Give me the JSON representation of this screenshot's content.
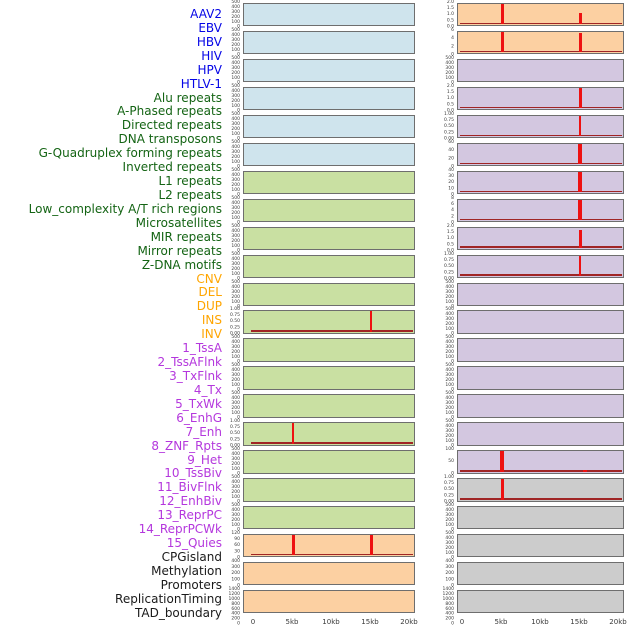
{
  "colors": {
    "signal": "#ee1111",
    "baseline": "#a02525",
    "panel_border": "#6e6e6e",
    "tick_text": "#3a3a3a",
    "groups": {
      "virus": {
        "bg": "#cfe4ed",
        "label": "#0505e6"
      },
      "repeat": {
        "bg": "#c9e0a2",
        "label": "#146414"
      },
      "sv": {
        "bg": "#fcd0a2",
        "label": "#ffa500"
      },
      "chromatin": {
        "bg": "#d3c7e0",
        "label": "#b437dd"
      },
      "other": {
        "bg": "#1a1a1a",
        "label": "#1a1a1a"
      }
    },
    "group_bgs": {
      "virus": "#cfe4ed",
      "repeat": "#c9e0a2",
      "sv": "#fcd0a2",
      "chromatin": "#d3c7e0",
      "other": "#cccccc"
    }
  },
  "chart_data": {
    "type": "line",
    "title": "",
    "layout": "small multiples, 22 rows x 2 columns, column-major order; one profile per genomic feature",
    "x": {
      "label": "",
      "ticks": [
        "0",
        "5kb",
        "10kb",
        "15kb",
        "20kb"
      ],
      "range_kb": [
        0,
        20
      ]
    },
    "note": "signal is flat near 0 with sharp peaks at 5kb and/or 15kb in some panels; spike h is fraction of panel y-range",
    "panels": [
      {
        "name": "AAV2",
        "group": "virus",
        "yticks": [
          "500",
          "400",
          "300",
          "200",
          "100",
          "0"
        ],
        "spikes": []
      },
      {
        "name": "EBV",
        "group": "virus",
        "yticks": [
          "500",
          "400",
          "300",
          "200",
          "100",
          "0"
        ],
        "spikes": []
      },
      {
        "name": "HBV",
        "group": "virus",
        "yticks": [
          "500",
          "400",
          "300",
          "200",
          "100",
          "0"
        ],
        "spikes": []
      },
      {
        "name": "HIV",
        "group": "virus",
        "yticks": [
          "500",
          "400",
          "300",
          "200",
          "100",
          "0"
        ],
        "spikes": []
      },
      {
        "name": "HPV",
        "group": "virus",
        "yticks": [
          "500",
          "400",
          "300",
          "200",
          "100",
          "0"
        ],
        "spikes": []
      },
      {
        "name": "HTLV-1",
        "group": "virus",
        "yticks": [
          "500",
          "400",
          "300",
          "200",
          "100",
          "0"
        ],
        "spikes": []
      },
      {
        "name": "Alu repeats",
        "group": "repeat",
        "yticks": [
          "500",
          "400",
          "300",
          "200",
          "100",
          "0"
        ],
        "spikes": []
      },
      {
        "name": "A-Phased repeats",
        "group": "repeat",
        "yticks": [
          "500",
          "400",
          "300",
          "200",
          "100",
          "0"
        ],
        "spikes": []
      },
      {
        "name": "Directed repeats",
        "group": "repeat",
        "yticks": [
          "500",
          "400",
          "300",
          "200",
          "100",
          "0"
        ],
        "spikes": []
      },
      {
        "name": "DNA transposons",
        "group": "repeat",
        "yticks": [
          "500",
          "400",
          "300",
          "200",
          "100",
          "0"
        ],
        "spikes": []
      },
      {
        "name": "G-Quadruplex forming repeats",
        "group": "repeat",
        "yticks": [
          "500",
          "400",
          "300",
          "200",
          "100",
          "0"
        ],
        "spikes": []
      },
      {
        "name": "Inverted repeats",
        "group": "repeat",
        "yticks": [
          "1.00",
          "0.75",
          "0.50",
          "0.25",
          "0.00"
        ],
        "spikes": [
          {
            "kb": 15,
            "h": 1.0,
            "w": 2
          }
        ]
      },
      {
        "name": "L1 repeats",
        "group": "repeat",
        "yticks": [
          "500",
          "400",
          "300",
          "200",
          "100",
          "0"
        ],
        "spikes": []
      },
      {
        "name": "L2 repeats",
        "group": "repeat",
        "yticks": [
          "500",
          "400",
          "300",
          "200",
          "100",
          "0"
        ],
        "spikes": []
      },
      {
        "name": "Low_complexity A/T rich regions",
        "group": "repeat",
        "yticks": [
          "500",
          "400",
          "300",
          "200",
          "100",
          "0"
        ],
        "spikes": []
      },
      {
        "name": "Microsatellites",
        "group": "repeat",
        "yticks": [
          "1.00",
          "0.75",
          "0.50",
          "0.25",
          "0.00"
        ],
        "spikes": [
          {
            "kb": 5,
            "h": 1.0,
            "w": 2
          }
        ]
      },
      {
        "name": "MIR repeats",
        "group": "repeat",
        "yticks": [
          "500",
          "400",
          "300",
          "200",
          "100",
          "0"
        ],
        "spikes": []
      },
      {
        "name": "Mirror repeats",
        "group": "repeat",
        "yticks": [
          "500",
          "400",
          "300",
          "200",
          "100",
          "0"
        ],
        "spikes": []
      },
      {
        "name": "Z-DNA motifs",
        "group": "repeat",
        "yticks": [
          "500",
          "400",
          "300",
          "200",
          "100",
          "0"
        ],
        "spikes": []
      },
      {
        "name": "CNV",
        "group": "sv",
        "yticks": [
          "120",
          "90",
          "60",
          "30",
          "0"
        ],
        "spikes": [
          {
            "kb": 5,
            "h": 1.0,
            "w": 3
          },
          {
            "kb": 15,
            "h": 1.0,
            "w": 3
          }
        ]
      },
      {
        "name": "DEL",
        "group": "sv",
        "yticks": [
          "400",
          "300",
          "200",
          "100",
          "0"
        ],
        "spikes": []
      },
      {
        "name": "DUP",
        "group": "sv",
        "yticks": [
          "1400",
          "1200",
          "1000",
          "800",
          "600",
          "400",
          "200",
          "0"
        ],
        "spikes": []
      },
      {
        "name": "INS",
        "group": "sv",
        "yticks": [
          "2.0",
          "1.5",
          "1.0",
          "0.5",
          "0.0"
        ],
        "spikes": [
          {
            "kb": 5,
            "h": 1.0,
            "w": 3
          },
          {
            "kb": 15,
            "h": 0.58,
            "w": 3
          }
        ]
      },
      {
        "name": "INV",
        "group": "sv",
        "yticks": [
          "6",
          "4",
          "2",
          "0"
        ],
        "spikes": [
          {
            "kb": 5,
            "h": 1.0,
            "w": 3
          },
          {
            "kb": 15,
            "h": 0.97,
            "w": 3
          }
        ]
      },
      {
        "name": "1_TssA",
        "group": "chromatin",
        "yticks": [
          "500",
          "400",
          "300",
          "200",
          "100",
          "0"
        ],
        "spikes": []
      },
      {
        "name": "2_TssAFlnk",
        "group": "chromatin",
        "yticks": [
          "2.0",
          "1.5",
          "1.0",
          "0.5",
          "0.0"
        ],
        "spikes": [
          {
            "kb": 15,
            "h": 1.0,
            "w": 3
          }
        ]
      },
      {
        "name": "3_TxFlnk",
        "group": "chromatin",
        "yticks": [
          "1.00",
          "0.75",
          "0.50",
          "0.25",
          "0.00"
        ],
        "spikes": [
          {
            "kb": 15,
            "h": 1.0,
            "w": 2
          }
        ]
      },
      {
        "name": "4_Tx",
        "group": "chromatin",
        "yticks": [
          "60",
          "40",
          "20",
          "0"
        ],
        "spikes": [
          {
            "kb": 15,
            "h": 1.0,
            "w": 4
          }
        ]
      },
      {
        "name": "5_TxWk",
        "group": "chromatin",
        "yticks": [
          "40",
          "30",
          "20",
          "10",
          "0"
        ],
        "spikes": [
          {
            "kb": 15,
            "h": 1.0,
            "w": 4
          }
        ]
      },
      {
        "name": "6_EnhG",
        "group": "chromatin",
        "yticks": [
          "8",
          "6",
          "4",
          "2",
          "0"
        ],
        "spikes": [
          {
            "kb": 15,
            "h": 1.0,
            "w": 4
          }
        ]
      },
      {
        "name": "7_Enh",
        "group": "chromatin",
        "yticks": [
          "2.0",
          "1.5",
          "1.0",
          "0.5",
          "0.0"
        ],
        "spikes": [
          {
            "kb": 15,
            "h": 0.88,
            "w": 3
          }
        ]
      },
      {
        "name": "8_ZNF_Rpts",
        "group": "chromatin",
        "yticks": [
          "1.00",
          "0.75",
          "0.50",
          "0.25",
          "0.00"
        ],
        "spikes": [
          {
            "kb": 15,
            "h": 1.0,
            "w": 2
          }
        ]
      },
      {
        "name": "9_Het",
        "group": "chromatin",
        "yticks": [
          "500",
          "400",
          "300",
          "200",
          "100",
          "0"
        ],
        "spikes": []
      },
      {
        "name": "10_TssBiv",
        "group": "chromatin",
        "yticks": [
          "500",
          "400",
          "300",
          "200",
          "100",
          "0"
        ],
        "spikes": []
      },
      {
        "name": "11_BivFlnk",
        "group": "chromatin",
        "yticks": [
          "500",
          "400",
          "300",
          "200",
          "100",
          "0"
        ],
        "spikes": []
      },
      {
        "name": "12_EnhBiv",
        "group": "chromatin",
        "yticks": [
          "500",
          "400",
          "300",
          "200",
          "100",
          "0"
        ],
        "spikes": []
      },
      {
        "name": "13_ReprPC",
        "group": "chromatin",
        "yticks": [
          "500",
          "400",
          "300",
          "200",
          "100",
          "0"
        ],
        "spikes": []
      },
      {
        "name": "14_ReprPCWk",
        "group": "chromatin",
        "yticks": [
          "500",
          "400",
          "300",
          "200",
          "100",
          "0"
        ],
        "spikes": []
      },
      {
        "name": "15_Quies",
        "group": "chromatin",
        "yticks": [
          "100",
          "50",
          "0"
        ],
        "spikes": [
          {
            "kb": 5,
            "h": 1.0,
            "w": 4
          },
          {
            "kb": 15.6,
            "h": 0.1,
            "w": 4
          }
        ]
      },
      {
        "name": "CPGisland",
        "group": "other",
        "yticks": [
          "1.00",
          "0.75",
          "0.50",
          "0.25",
          "0.00"
        ],
        "spikes": [
          {
            "kb": 5,
            "h": 1.0,
            "w": 3
          }
        ]
      },
      {
        "name": "Methylation",
        "group": "other",
        "yticks": [
          "500",
          "400",
          "300",
          "200",
          "100",
          "0"
        ],
        "spikes": []
      },
      {
        "name": "Promoters",
        "group": "other",
        "yticks": [
          "500",
          "400",
          "300",
          "200",
          "100",
          "0"
        ],
        "spikes": []
      },
      {
        "name": "ReplicationTiming",
        "group": "other",
        "yticks": [
          "400",
          "300",
          "200",
          "100",
          "0"
        ],
        "spikes": []
      },
      {
        "name": "TAD_boundary",
        "group": "other",
        "yticks": [
          "1400",
          "1200",
          "1000",
          "800",
          "600",
          "400",
          "200",
          "0"
        ],
        "spikes": []
      }
    ]
  }
}
